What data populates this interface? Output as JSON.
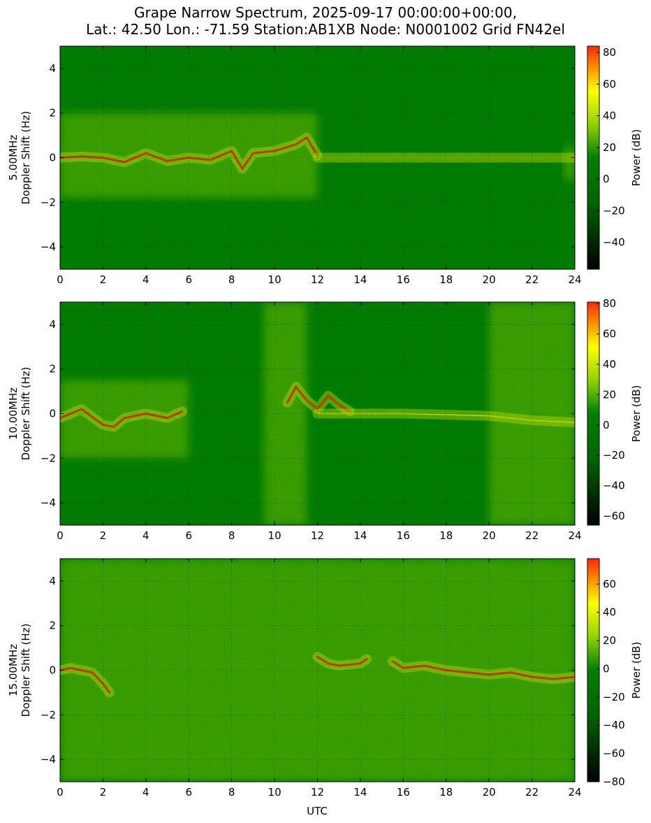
{
  "title_lines": [
    "Grape Narrow Spectrum, 2025-09-17 00:00:00+00:00,",
    "Lat.: 42.50 Lon.: -71.59 Station:AB1XB Node: N0001002 Grid FN42el"
  ],
  "x_axis_label": "UTC",
  "colors": {
    "low": "#000000",
    "mid_low": "#006400",
    "mid": "#008000",
    "mid_high": "#8fd400",
    "high_yellow": "#ffff00",
    "top": "#ff2a00"
  },
  "chart_data": [
    {
      "type": "heatmap",
      "ylabel": "5.00MHz\nDoppler Shift (Hz)",
      "xlabel": "",
      "xlim": [
        0,
        24
      ],
      "ylim": [
        -5,
        5
      ],
      "x_ticks": [
        0,
        2,
        4,
        6,
        8,
        10,
        12,
        14,
        16,
        18,
        20,
        22,
        24
      ],
      "y_ticks": [
        -4,
        -2,
        0,
        2,
        4
      ],
      "grid": true,
      "colorbar": {
        "label": "Power (dB)",
        "range": [
          -57,
          84
        ],
        "ticks": [
          -40,
          -20,
          0,
          20,
          40,
          60,
          80
        ]
      },
      "traces": [
        {
          "x": [
            0,
            1,
            2,
            3,
            4,
            5,
            6,
            7,
            8,
            8.5,
            9,
            10,
            11,
            11.5,
            12
          ],
          "y": [
            0,
            0.05,
            0,
            -0.2,
            0.2,
            -0.15,
            0,
            -0.1,
            0.3,
            -0.5,
            0.2,
            0.3,
            0.6,
            0.9,
            0.1
          ],
          "level": "high"
        },
        {
          "x": [
            12,
            14,
            16,
            18,
            20,
            22,
            24
          ],
          "y": [
            0,
            0,
            0,
            0,
            0,
            0,
            0
          ],
          "level": "mid"
        }
      ],
      "regions": [
        {
          "x": [
            0,
            12
          ],
          "y": [
            -1.8,
            2
          ],
          "level": "mid_high"
        },
        {
          "x": [
            23.5,
            24
          ],
          "y": [
            -1,
            0.5
          ],
          "level": "mid_high"
        }
      ]
    },
    {
      "type": "heatmap",
      "ylabel": "10.00MHz\nDoppler Shift (Hz)",
      "xlabel": "",
      "xlim": [
        0,
        24
      ],
      "ylim": [
        -5,
        5
      ],
      "x_ticks": [
        0,
        2,
        4,
        6,
        8,
        10,
        12,
        14,
        16,
        18,
        20,
        22,
        24
      ],
      "y_ticks": [
        -4,
        -2,
        0,
        2,
        4
      ],
      "grid": true,
      "colorbar": {
        "label": "Power (dB)",
        "range": [
          -66,
          81
        ],
        "ticks": [
          -60,
          -40,
          -20,
          0,
          20,
          40,
          60,
          80
        ]
      },
      "traces": [
        {
          "x": [
            0,
            1,
            2,
            2.5,
            3,
            4,
            5,
            5.7
          ],
          "y": [
            -0.2,
            0.2,
            -0.5,
            -0.6,
            -0.2,
            0,
            -0.2,
            0.1
          ],
          "level": "high"
        },
        {
          "x": [
            10.6,
            11,
            11.5,
            12,
            12.5,
            13,
            13.5
          ],
          "y": [
            0.5,
            1.2,
            0.6,
            0.2,
            0.8,
            0.4,
            0.1
          ],
          "level": "high"
        },
        {
          "x": [
            12,
            14,
            16,
            18,
            20,
            22,
            24
          ],
          "y": [
            0,
            0,
            0,
            -0.05,
            -0.1,
            -0.3,
            -0.4
          ],
          "level": "high_yellow"
        }
      ],
      "regions": [
        {
          "x": [
            0,
            6
          ],
          "y": [
            -2,
            1.5
          ],
          "level": "mid_high"
        },
        {
          "x": [
            9.5,
            11.5
          ],
          "y": [
            -5,
            5
          ],
          "level": "mid_high"
        },
        {
          "x": [
            20,
            24
          ],
          "y": [
            -5,
            5
          ],
          "level": "mid_high"
        }
      ]
    },
    {
      "type": "heatmap",
      "ylabel": "15.00MHz\nDoppler Shift (Hz)",
      "xlabel": "UTC",
      "xlim": [
        0,
        24
      ],
      "ylim": [
        -5,
        5
      ],
      "x_ticks": [
        0,
        2,
        4,
        6,
        8,
        10,
        12,
        14,
        16,
        18,
        20,
        22,
        24
      ],
      "y_ticks": [
        -4,
        -2,
        0,
        2,
        4
      ],
      "grid": true,
      "colorbar": {
        "label": "Power (dB)",
        "range": [
          -80,
          78
        ],
        "ticks": [
          -80,
          -60,
          -40,
          -20,
          0,
          20,
          40,
          60
        ]
      },
      "traces": [
        {
          "x": [
            0,
            0.5,
            1,
            1.5,
            2,
            2.3
          ],
          "y": [
            0,
            0.1,
            0,
            -0.1,
            -0.6,
            -1
          ],
          "level": "high"
        },
        {
          "x": [
            12,
            12.5,
            13,
            14,
            14.3
          ],
          "y": [
            0.6,
            0.3,
            0.2,
            0.3,
            0.5
          ],
          "level": "high"
        },
        {
          "x": [
            15.5,
            16,
            17,
            18,
            19,
            20,
            21,
            22,
            23,
            24
          ],
          "y": [
            0.4,
            0.1,
            0.2,
            0,
            -0.1,
            -0.2,
            -0.1,
            -0.3,
            -0.4,
            -0.3
          ],
          "level": "high"
        }
      ],
      "regions": [
        {
          "x": [
            0,
            24
          ],
          "y": [
            -5,
            5
          ],
          "level": "mid_high"
        }
      ]
    }
  ]
}
